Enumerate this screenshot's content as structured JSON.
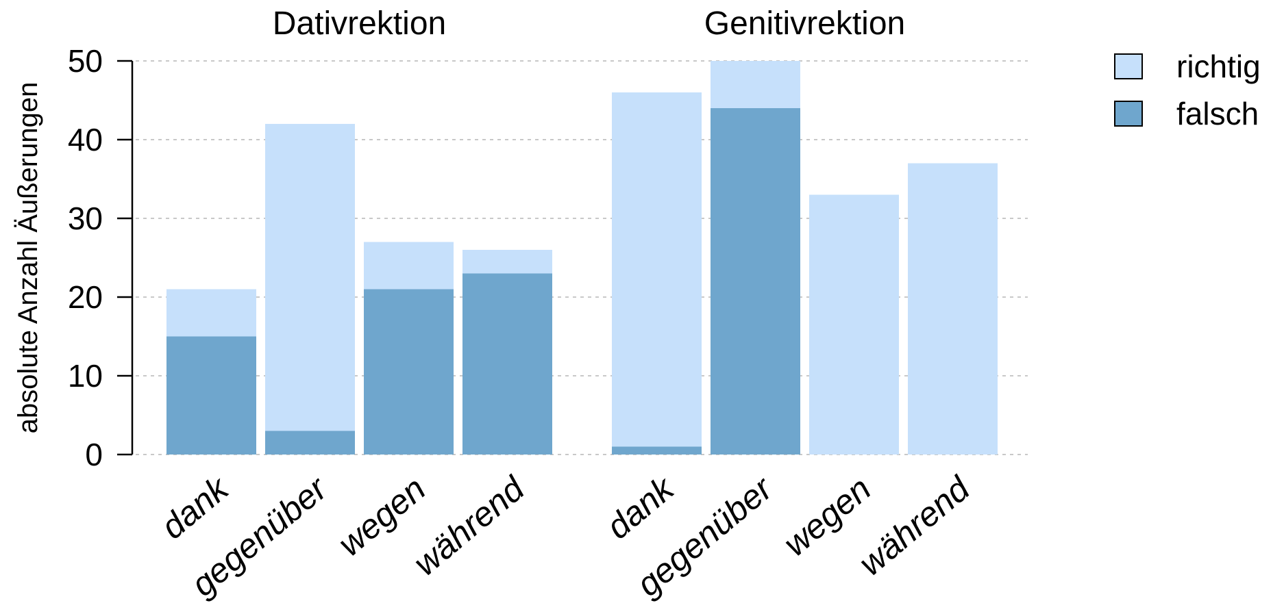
{
  "chart_data": {
    "type": "bar",
    "stacked": true,
    "ylabel": "absolute Anzahl Äußerungen",
    "ylim": [
      0,
      50
    ],
    "yticks": [
      0,
      10,
      20,
      30,
      40,
      50
    ],
    "grid": true,
    "legend": {
      "position": "top-right",
      "entries": [
        {
          "name": "richtig",
          "color": "#c6e0fb"
        },
        {
          "name": "falsch",
          "color": "#6fa6cd"
        }
      ]
    },
    "panels": [
      {
        "title": "Dativrektion",
        "categories": [
          "dank",
          "gegenüber",
          "wegen",
          "während"
        ],
        "series": [
          {
            "name": "falsch",
            "values": [
              15,
              3,
              21,
              23
            ]
          },
          {
            "name": "richtig",
            "values": [
              6,
              39,
              6,
              3
            ]
          }
        ]
      },
      {
        "title": "Genitivrektion",
        "categories": [
          "dank",
          "gegenüber",
          "wegen",
          "während"
        ],
        "series": [
          {
            "name": "falsch",
            "values": [
              1,
              44,
              0,
              0
            ]
          },
          {
            "name": "richtig",
            "values": [
              45,
              6,
              33,
              37
            ]
          }
        ]
      }
    ]
  }
}
